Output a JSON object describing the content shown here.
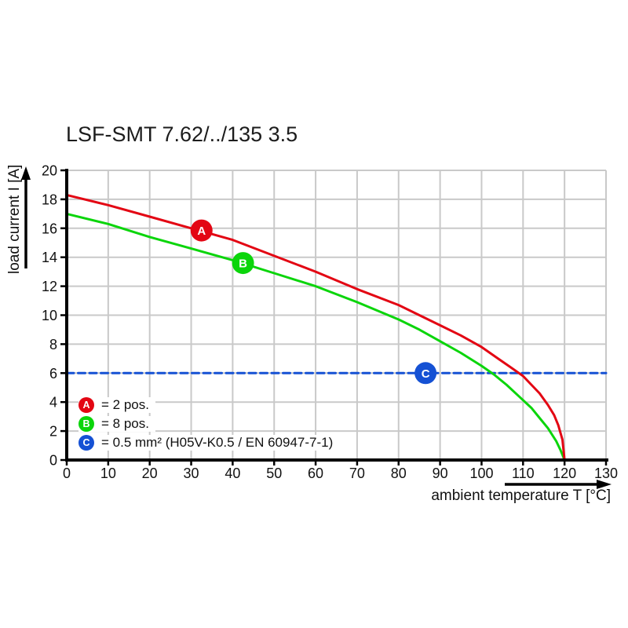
{
  "header": {
    "title": "LSF-SMT 7.62/../135 3.5"
  },
  "axes": {
    "y_label": "load current I [A]",
    "x_label": "ambient temperature T [°C]"
  },
  "legend": {
    "items": [
      {
        "letter": "A",
        "label": "= 2 pos.",
        "color": "#e30613"
      },
      {
        "letter": "B",
        "label": "= 8 pos.",
        "color": "#0bd50b"
      },
      {
        "letter": "C",
        "label": "= 0.5 mm² (H05V-K0.5 / EN 60947-7-1)",
        "color": "#1551d4"
      }
    ]
  },
  "chart_data": {
    "type": "line",
    "title": "LSF-SMT 7.62/../135 3.5",
    "xlabel": "ambient temperature T [°C]",
    "ylabel": "load current I [A]",
    "xlim": [
      0,
      130
    ],
    "ylim": [
      0,
      20
    ],
    "x_ticks": [
      0,
      10,
      20,
      30,
      40,
      50,
      60,
      70,
      80,
      90,
      100,
      110,
      120,
      130
    ],
    "y_ticks": [
      0,
      2,
      4,
      6,
      8,
      10,
      12,
      14,
      16,
      18,
      20
    ],
    "grid": true,
    "grid_color": "#c9c9c9",
    "axis_color": "#000000",
    "series": [
      {
        "letter": "C",
        "name": "0.5 mm² (H05V-K0.5 / EN 60947-7-1)",
        "color": "#1551d4",
        "style": "dashed",
        "marker": {
          "x": 86.5,
          "y": 6
        },
        "points": [
          [
            0,
            6
          ],
          [
            130,
            6
          ]
        ]
      },
      {
        "letter": "B",
        "name": "8 pos.",
        "color": "#0bd50b",
        "style": "solid",
        "marker": {
          "x": 42.5,
          "y": 13.6
        },
        "points": [
          [
            0,
            17.0
          ],
          [
            10,
            16.3
          ],
          [
            20,
            15.4
          ],
          [
            30,
            14.6
          ],
          [
            40,
            13.8
          ],
          [
            50,
            12.9
          ],
          [
            60,
            12.0
          ],
          [
            70,
            10.9
          ],
          [
            80,
            9.7
          ],
          [
            85,
            9.0
          ],
          [
            90,
            8.2
          ],
          [
            95,
            7.4
          ],
          [
            100,
            6.5
          ],
          [
            103,
            5.9
          ],
          [
            106,
            5.2
          ],
          [
            109,
            4.4
          ],
          [
            112,
            3.6
          ],
          [
            114,
            2.9
          ],
          [
            116,
            2.2
          ],
          [
            118,
            1.3
          ],
          [
            119,
            0.7
          ],
          [
            120,
            0
          ]
        ]
      },
      {
        "letter": "A",
        "name": "2 pos.",
        "color": "#e30613",
        "style": "solid",
        "marker": {
          "x": 32.5,
          "y": 15.85
        },
        "points": [
          [
            0,
            18.3
          ],
          [
            10,
            17.6
          ],
          [
            20,
            16.8
          ],
          [
            30,
            16.0
          ],
          [
            40,
            15.2
          ],
          [
            50,
            14.1
          ],
          [
            60,
            13.0
          ],
          [
            70,
            11.8
          ],
          [
            80,
            10.7
          ],
          [
            85,
            10.0
          ],
          [
            90,
            9.3
          ],
          [
            95,
            8.6
          ],
          [
            100,
            7.8
          ],
          [
            104,
            7.0
          ],
          [
            107,
            6.4
          ],
          [
            110,
            5.8
          ],
          [
            112,
            5.2
          ],
          [
            114,
            4.6
          ],
          [
            116,
            3.8
          ],
          [
            117.5,
            3.1
          ],
          [
            118.5,
            2.4
          ],
          [
            119.5,
            1.4
          ],
          [
            120,
            0
          ]
        ]
      }
    ]
  }
}
